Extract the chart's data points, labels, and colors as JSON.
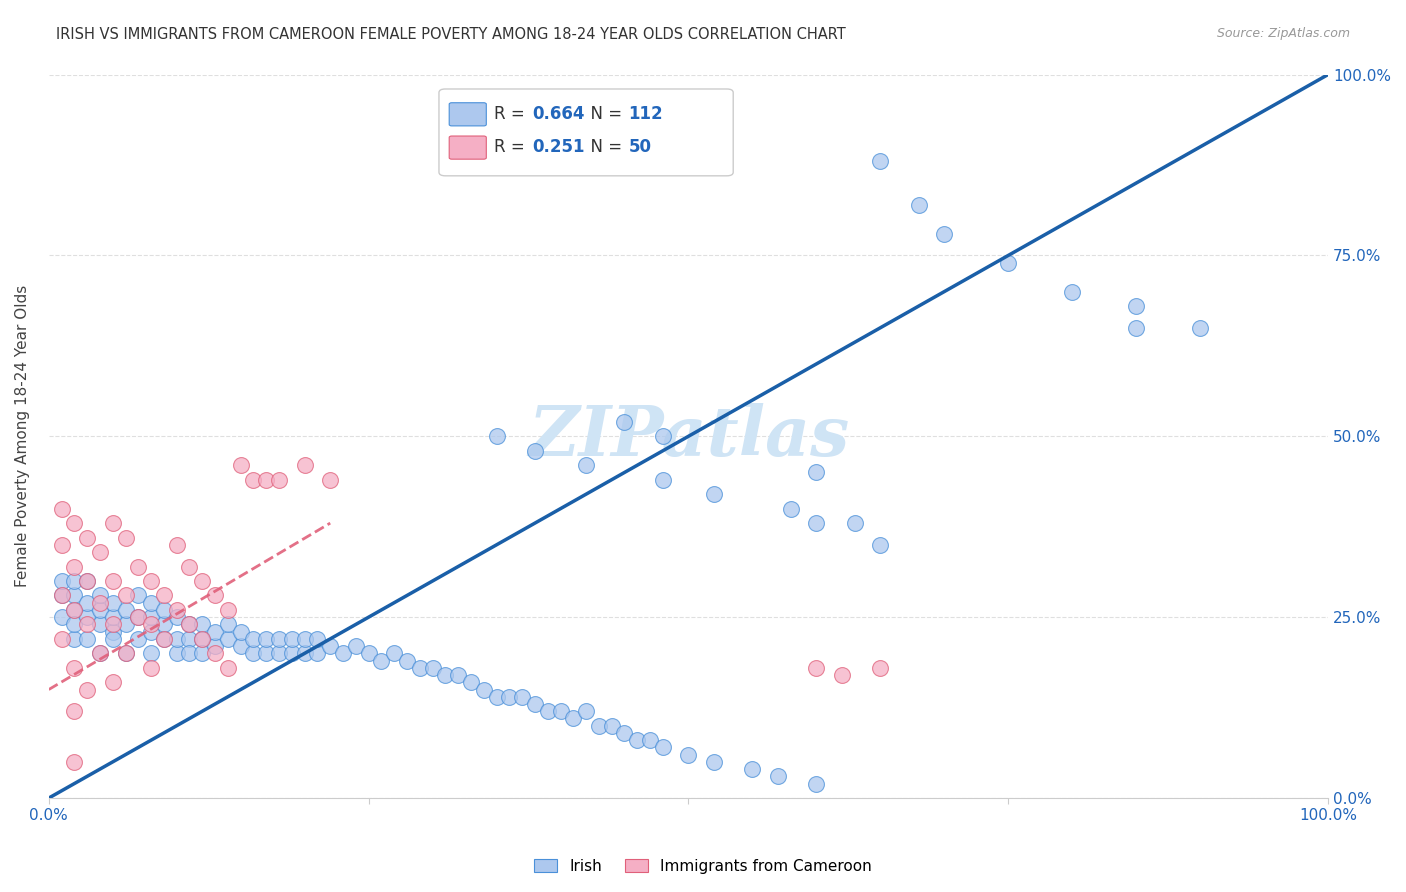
{
  "title": "IRISH VS IMMIGRANTS FROM CAMEROON FEMALE POVERTY AMONG 18-24 YEAR OLDS CORRELATION CHART",
  "source": "Source: ZipAtlas.com",
  "ylabel": "Female Poverty Among 18-24 Year Olds",
  "x_tick_labels": [
    "0.0%",
    "",
    "",
    "",
    "100.0%"
  ],
  "y_tick_labels_right": [
    "0.0%",
    "25.0%",
    "50.0%",
    "75.0%",
    "100.0%"
  ],
  "legend_blue_r_val": "0.664",
  "legend_blue_n_val": "112",
  "legend_pink_r_val": "0.251",
  "legend_pink_n_val": "50",
  "legend_label_blue": "Irish",
  "legend_label_pink": "Immigrants from Cameroon",
  "blue_scatter_color": "#adc8ee",
  "blue_edge_color": "#4a90d9",
  "pink_scatter_color": "#f5afc5",
  "pink_edge_color": "#e0607a",
  "blue_line_color": "#1a5fa8",
  "pink_line_color": "#e0607a",
  "ref_line_color": "#c8c8c8",
  "watermark_color": "#cfe4f5",
  "blue_line": [
    0.0,
    0.0,
    1.0,
    1.0
  ],
  "pink_line": [
    0.0,
    0.15,
    0.22,
    0.38
  ],
  "ref_line": [
    0.0,
    0.0,
    1.0,
    1.0
  ],
  "blue_x": [
    0.01,
    0.01,
    0.01,
    0.02,
    0.02,
    0.02,
    0.02,
    0.02,
    0.03,
    0.03,
    0.03,
    0.03,
    0.04,
    0.04,
    0.04,
    0.04,
    0.05,
    0.05,
    0.05,
    0.05,
    0.06,
    0.06,
    0.06,
    0.07,
    0.07,
    0.07,
    0.08,
    0.08,
    0.08,
    0.08,
    0.09,
    0.09,
    0.09,
    0.1,
    0.1,
    0.1,
    0.11,
    0.11,
    0.11,
    0.12,
    0.12,
    0.12,
    0.13,
    0.13,
    0.14,
    0.14,
    0.15,
    0.15,
    0.16,
    0.16,
    0.17,
    0.17,
    0.18,
    0.18,
    0.19,
    0.19,
    0.2,
    0.2,
    0.21,
    0.21,
    0.22,
    0.23,
    0.24,
    0.25,
    0.26,
    0.27,
    0.28,
    0.29,
    0.3,
    0.31,
    0.32,
    0.33,
    0.34,
    0.35,
    0.36,
    0.37,
    0.38,
    0.39,
    0.4,
    0.41,
    0.42,
    0.43,
    0.44,
    0.45,
    0.46,
    0.47,
    0.48,
    0.5,
    0.52,
    0.55,
    0.57,
    0.6,
    0.6,
    0.63,
    0.65,
    0.68,
    0.7,
    0.75,
    0.8,
    0.85,
    0.85,
    0.9,
    0.45,
    0.48,
    0.35,
    0.38,
    0.42,
    0.48,
    0.52,
    0.58,
    0.6,
    0.65
  ],
  "blue_y": [
    0.28,
    0.3,
    0.25,
    0.26,
    0.28,
    0.22,
    0.24,
    0.3,
    0.25,
    0.27,
    0.22,
    0.3,
    0.24,
    0.26,
    0.28,
    0.2,
    0.23,
    0.25,
    0.27,
    0.22,
    0.24,
    0.26,
    0.2,
    0.22,
    0.25,
    0.28,
    0.2,
    0.23,
    0.25,
    0.27,
    0.22,
    0.24,
    0.26,
    0.2,
    0.22,
    0.25,
    0.22,
    0.24,
    0.2,
    0.22,
    0.24,
    0.2,
    0.21,
    0.23,
    0.22,
    0.24,
    0.21,
    0.23,
    0.2,
    0.22,
    0.2,
    0.22,
    0.2,
    0.22,
    0.2,
    0.22,
    0.2,
    0.22,
    0.2,
    0.22,
    0.21,
    0.2,
    0.21,
    0.2,
    0.19,
    0.2,
    0.19,
    0.18,
    0.18,
    0.17,
    0.17,
    0.16,
    0.15,
    0.14,
    0.14,
    0.14,
    0.13,
    0.12,
    0.12,
    0.11,
    0.12,
    0.1,
    0.1,
    0.09,
    0.08,
    0.08,
    0.07,
    0.06,
    0.05,
    0.04,
    0.03,
    0.02,
    0.45,
    0.38,
    0.88,
    0.82,
    0.78,
    0.74,
    0.7,
    0.68,
    0.65,
    0.65,
    0.52,
    0.5,
    0.5,
    0.48,
    0.46,
    0.44,
    0.42,
    0.4,
    0.38,
    0.35
  ],
  "pink_x": [
    0.01,
    0.01,
    0.01,
    0.01,
    0.02,
    0.02,
    0.02,
    0.02,
    0.02,
    0.03,
    0.03,
    0.03,
    0.03,
    0.04,
    0.04,
    0.04,
    0.05,
    0.05,
    0.05,
    0.05,
    0.06,
    0.06,
    0.06,
    0.07,
    0.07,
    0.08,
    0.08,
    0.08,
    0.09,
    0.09,
    0.1,
    0.1,
    0.11,
    0.11,
    0.12,
    0.12,
    0.13,
    0.13,
    0.14,
    0.14,
    0.15,
    0.16,
    0.17,
    0.18,
    0.2,
    0.22,
    0.6,
    0.62,
    0.65,
    0.02
  ],
  "pink_y": [
    0.4,
    0.35,
    0.28,
    0.22,
    0.38,
    0.32,
    0.26,
    0.18,
    0.12,
    0.36,
    0.3,
    0.24,
    0.15,
    0.34,
    0.27,
    0.2,
    0.38,
    0.3,
    0.24,
    0.16,
    0.36,
    0.28,
    0.2,
    0.32,
    0.25,
    0.3,
    0.24,
    0.18,
    0.28,
    0.22,
    0.35,
    0.26,
    0.32,
    0.24,
    0.3,
    0.22,
    0.28,
    0.2,
    0.26,
    0.18,
    0.46,
    0.44,
    0.44,
    0.44,
    0.46,
    0.44,
    0.18,
    0.17,
    0.18,
    0.05
  ]
}
